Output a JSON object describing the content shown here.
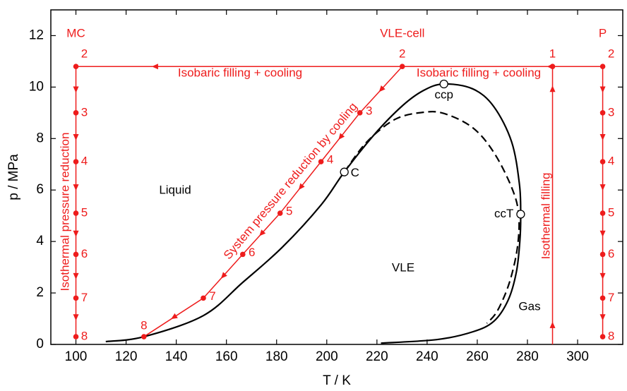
{
  "chart_data": {
    "type": "phase-diagram",
    "xlabel": "T / K",
    "ylabel": "p / MPa",
    "xlim": [
      90,
      318
    ],
    "xticks": [
      100,
      120,
      140,
      160,
      180,
      200,
      220,
      240,
      260,
      280,
      300
    ],
    "ylim": [
      0,
      13
    ],
    "yticks": [
      0,
      2,
      4,
      6,
      8,
      10,
      12
    ],
    "curves": [
      {
        "color": "#000000",
        "dashed": false,
        "x": [
          111.9,
          127.1,
          150.8,
          166.5,
          182.3,
          197.8,
          207,
          218.9,
          230.1,
          238.6,
          246.7,
          258.2,
          266.6,
          273.7,
          276.8,
          277.3,
          277,
          275.6,
          272.3,
          266.6,
          258.2,
          244.1,
          221.6
        ],
        "y": [
          0.11,
          0.3,
          1.12,
          2.41,
          3.78,
          5.43,
          6.7,
          8.15,
          9.27,
          9.87,
          10.12,
          9.93,
          9.24,
          7.87,
          6.23,
          5.06,
          4.05,
          2.82,
          1.72,
          0.9,
          0.49,
          0.19,
          0.05
        ]
      },
      {
        "color": "#000000",
        "dashed": true,
        "x": [
          207,
          216,
          227.3,
          238.5,
          246.9,
          258.2,
          266.6,
          273.7,
          276.5,
          276,
          272.8,
          268,
          263.8
        ],
        "y": [
          6.7,
          7.87,
          8.75,
          9.02,
          8.97,
          8.42,
          7.46,
          6.1,
          5.06,
          3.77,
          2.4,
          1.3,
          0.82
        ]
      }
    ],
    "routes_color": "#ee1c1c",
    "routes": [
      {
        "name": "MC",
        "x": [
          100,
          100,
          100,
          100,
          100,
          100,
          100
        ],
        "y": [
          10.8,
          9.0,
          7.1,
          5.1,
          3.5,
          1.8,
          0.3
        ],
        "point_labels": [
          "2",
          "3",
          "4",
          "5",
          "6",
          "7",
          "8"
        ]
      },
      {
        "name": "VLE-cell",
        "x": [
          230.1,
          213.2,
          197.7,
          181.4,
          166.5,
          150.8,
          127.1
        ],
        "y": [
          10.8,
          9.0,
          7.1,
          5.1,
          3.5,
          1.8,
          0.3
        ],
        "point_labels": [
          "2",
          "3",
          "4",
          "5",
          "6",
          "7",
          "8"
        ]
      },
      {
        "name": "P",
        "x": [
          310,
          310,
          310,
          310,
          310,
          310,
          310
        ],
        "y": [
          10.8,
          9.0,
          7.1,
          5.1,
          3.5,
          1.8,
          0.3
        ],
        "point_labels": [
          "2",
          "3",
          "4",
          "5",
          "6",
          "7",
          "8"
        ]
      }
    ],
    "isobar": {
      "x": [
        310,
        100
      ],
      "y": [
        10.8,
        10.8
      ]
    },
    "isotherm": {
      "x": [
        290,
        290
      ],
      "y": [
        0,
        10.8
      ]
    },
    "filling_point": {
      "x": 290,
      "y": 10.8,
      "label": "1"
    },
    "critical_points": [
      {
        "label": "ccp",
        "x": 246.7,
        "y": 10.12
      },
      {
        "label": "C",
        "x": 207,
        "y": 6.7
      },
      {
        "label": "ccT",
        "x": 277.3,
        "y": 5.06
      }
    ],
    "annotations": [
      {
        "text": "Isobaric filling + cooling",
        "color": "#ee1c1c"
      },
      {
        "text": "Isobaric filling + cooling",
        "color": "#ee1c1c"
      },
      {
        "text": "Isothermal pressure reduction",
        "color": "#ee1c1c"
      },
      {
        "text": "System pressure reduction by cooling",
        "color": "#ee1c1c"
      },
      {
        "text": "Isothermal filling",
        "color": "#ee1c1c"
      },
      {
        "text": "Liquid",
        "color": "#000000"
      },
      {
        "text": "VLE",
        "color": "#000000"
      },
      {
        "text": "Gas",
        "color": "#000000"
      }
    ]
  }
}
